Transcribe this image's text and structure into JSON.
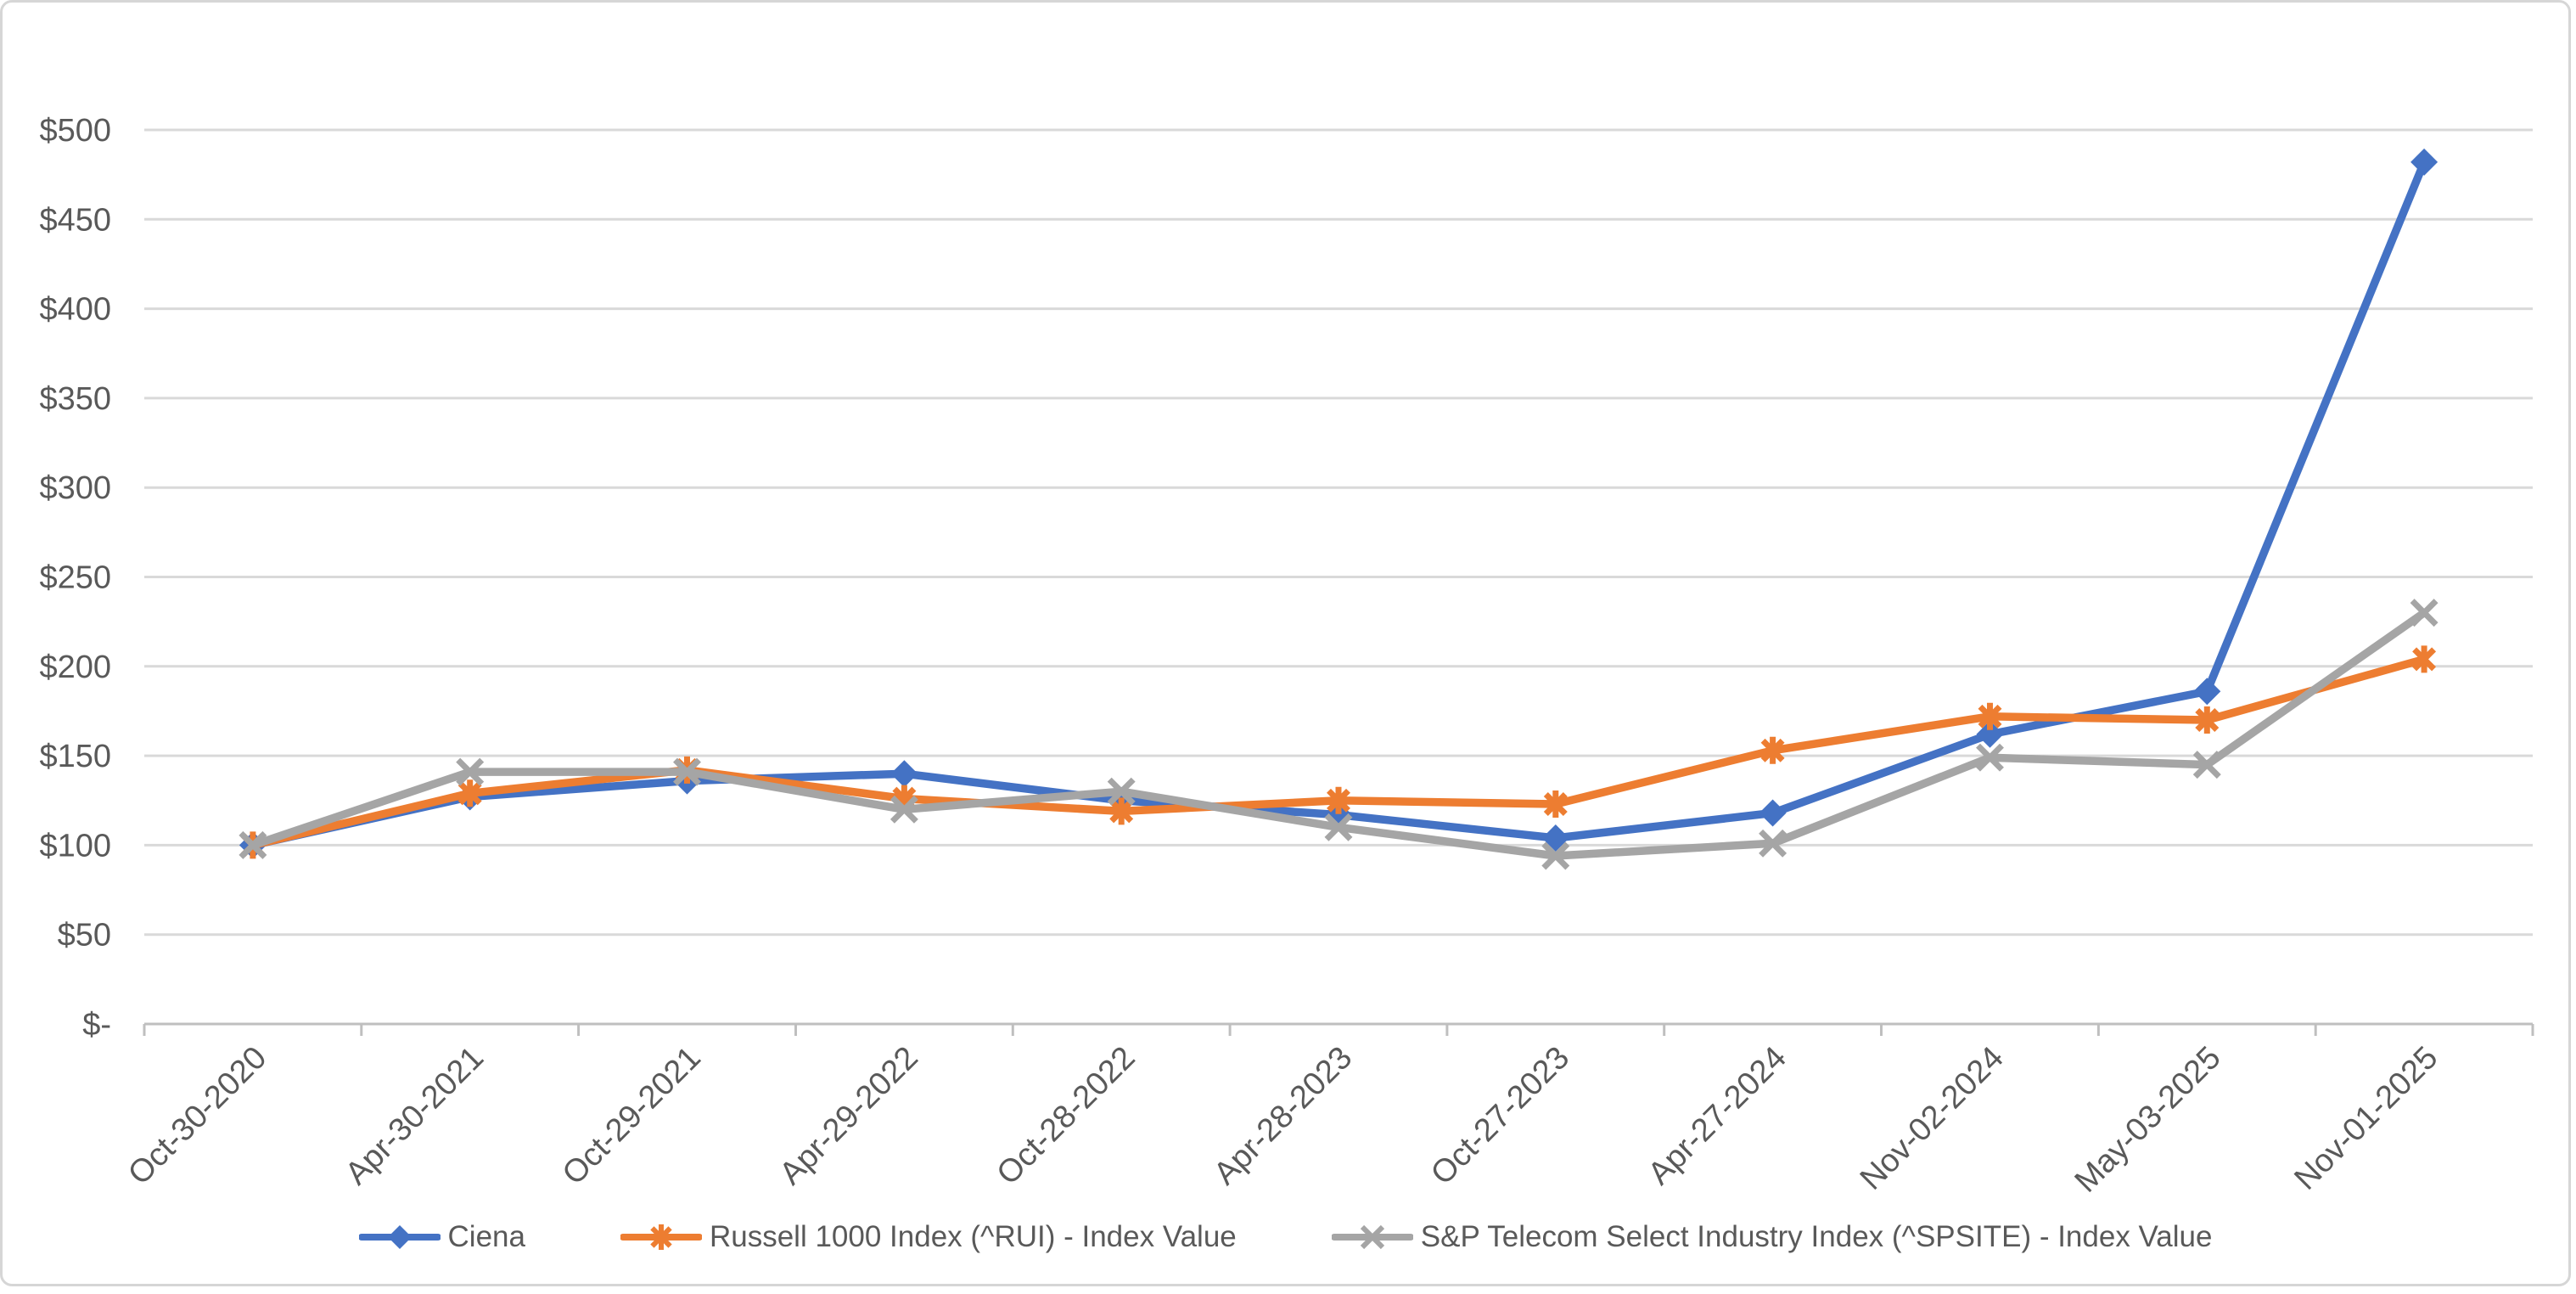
{
  "chart_data": {
    "type": "line",
    "title": "",
    "xlabel": "",
    "ylabel": "",
    "categories": [
      "Oct-30-2020",
      "Apr-30-2021",
      "Oct-29-2021",
      "Apr-29-2022",
      "Oct-28-2022",
      "Apr-28-2023",
      "Oct-27-2023",
      "Apr-27-2024",
      "Nov-02-2024",
      "May-03-2025",
      "Nov-01-2025"
    ],
    "series": [
      {
        "name": "Ciena",
        "marker": "diamond",
        "color": "#4472C4",
        "values": [
          100,
          127,
          136,
          140,
          125,
          117,
          104,
          118,
          162,
          186,
          482
        ]
      },
      {
        "name": "Russell 1000 Index (^RUI) - Index Value",
        "marker": "asterisk",
        "color": "#ED7D31",
        "values": [
          100,
          129,
          142,
          126,
          119,
          125,
          123,
          153,
          172,
          170,
          204
        ]
      },
      {
        "name": "S&P Telecom Select Industry Index (^SPSITE) - Index Value",
        "marker": "x",
        "color": "#A5A5A5",
        "values": [
          100,
          141,
          141,
          120,
          130,
          110,
          94,
          101,
          149,
          145,
          230
        ]
      }
    ],
    "y_axis": {
      "min": 0,
      "max": 500,
      "step": 50,
      "tick_labels": [
        "$-",
        "$50",
        "$100",
        "$150",
        "$200",
        "$250",
        "$300",
        "$350",
        "$400",
        "$450",
        "$500"
      ]
    },
    "x_axis": {
      "label_rotation_deg": -45
    },
    "grid": true,
    "legend_position": "bottom"
  },
  "colors": {
    "gridline": "#D9D9D9",
    "axis_line": "#BFBFBF",
    "tick_text": "#595959",
    "legend_text": "#595959",
    "background": "#FFFFFF",
    "frame_border": "#D6D6D6"
  }
}
